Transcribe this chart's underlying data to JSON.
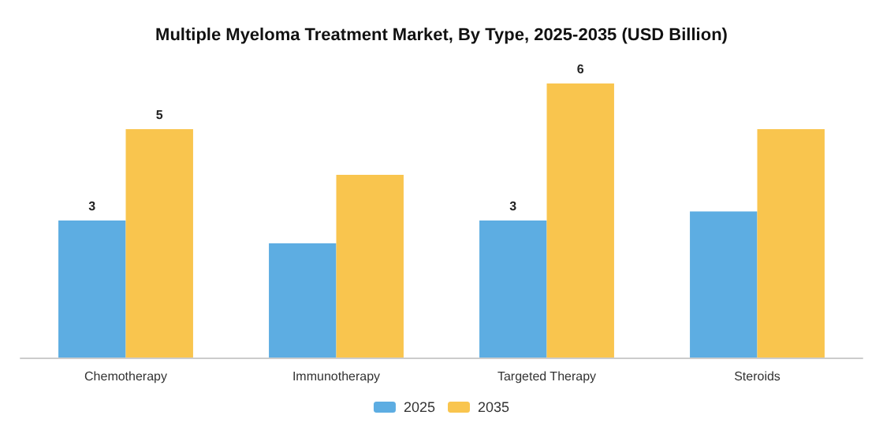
{
  "chart_data": {
    "type": "bar",
    "title": "Multiple Myeloma Treatment Market, By Type, 2025-2035 (USD Billion)",
    "categories": [
      "Chemotherapy",
      "Immunotherapy",
      "Targeted Therapy",
      "Steroids"
    ],
    "series": [
      {
        "name": "2025",
        "color": "#5dade2",
        "values": [
          3,
          2.5,
          3,
          3.2
        ],
        "value_labels": [
          "3",
          null,
          "3",
          null
        ]
      },
      {
        "name": "2035",
        "color": "#f9c54e",
        "values": [
          5,
          4,
          6,
          5
        ],
        "value_labels": [
          "5",
          null,
          "6",
          null
        ]
      }
    ],
    "legend": "bottom"
  }
}
